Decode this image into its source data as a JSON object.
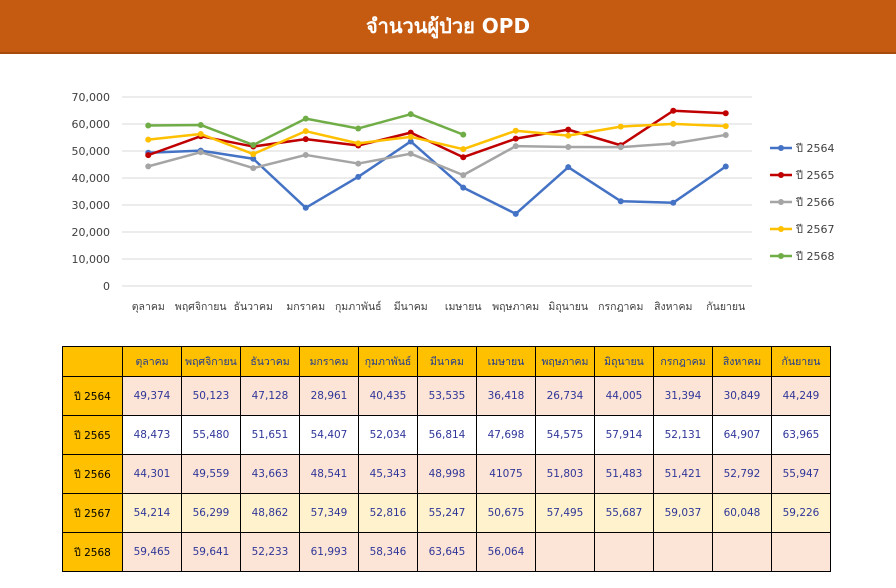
{
  "header": {
    "title": "จำนวนผู้ป่วย OPD"
  },
  "chart_data": {
    "type": "line",
    "title": "",
    "xlabel": "",
    "ylabel": "",
    "ylim": [
      0,
      70000
    ],
    "yticks": [
      0,
      10000,
      20000,
      30000,
      40000,
      50000,
      60000,
      70000
    ],
    "ytick_labels": [
      "0",
      "10,000",
      "20,000",
      "30,000",
      "40,000",
      "50,000",
      "60,000",
      "70,000"
    ],
    "grid": true,
    "legend_position": "right",
    "categories": [
      "ตุลาคม",
      "พฤศจิกายน",
      "ธันวาคม",
      "มกราคม",
      "กุมภาพันธ์",
      "มีนาคม",
      "เมษายน",
      "พฤษภาคม",
      "มิถุนายน",
      "กรกฎาคม",
      "สิงหาคม",
      "กันยายน"
    ],
    "series": [
      {
        "name": "ปี 2564",
        "color": "#4472c4",
        "values": [
          49374,
          50123,
          47128,
          28961,
          40435,
          53535,
          36418,
          26734,
          44005,
          31394,
          30849,
          44249
        ]
      },
      {
        "name": "ปี 2565",
        "color": "#c00000",
        "values": [
          48473,
          55480,
          51651,
          54407,
          52034,
          56814,
          47698,
          54575,
          57914,
          52131,
          64907,
          63965
        ]
      },
      {
        "name": "ปี 2566",
        "color": "#a5a5a5",
        "values": [
          44301,
          49559,
          43663,
          48541,
          45343,
          48998,
          41075,
          51803,
          51483,
          51421,
          52792,
          55947
        ]
      },
      {
        "name": "ปี 2567",
        "color": "#ffc000",
        "values": [
          54214,
          56299,
          48862,
          57349,
          52816,
          55247,
          50675,
          57495,
          55687,
          59037,
          60048,
          59226
        ]
      },
      {
        "name": "ปี 2568",
        "color": "#70ad47",
        "values": [
          59465,
          59641,
          52233,
          61993,
          58346,
          63645,
          56064,
          null,
          null,
          null,
          null,
          null
        ]
      }
    ]
  },
  "table": {
    "corner": "",
    "columns": [
      "ตุลาคม",
      "พฤศจิกายน",
      "ธันวาคม",
      "มกราคม",
      "กุมภาพันธ์",
      "มีนาคม",
      "เมษายน",
      "พฤษภาคม",
      "มิถุนายน",
      "กรกฎาคม",
      "สิงหาคม",
      "กันยายน"
    ],
    "rows": [
      {
        "label": "ปี 2564",
        "cells": [
          "49,374",
          "50,123",
          "47,128",
          "28,961",
          "40,435",
          "53,535",
          "36,418",
          "26,734",
          "44,005",
          "31,394",
          "30,849",
          "44,249"
        ]
      },
      {
        "label": "ปี 2565",
        "cells": [
          "48,473",
          "55,480",
          "51,651",
          "54,407",
          "52,034",
          "56,814",
          "47,698",
          "54,575",
          "57,914",
          "52,131",
          "64,907",
          "63,965"
        ]
      },
      {
        "label": "ปี 2566",
        "cells": [
          "44,301",
          "49,559",
          "43,663",
          "48,541",
          "45,343",
          "48,998",
          "41075",
          "51,803",
          "51,483",
          "51,421",
          "52,792",
          "55,947"
        ]
      },
      {
        "label": "ปี 2567",
        "cells": [
          "54,214",
          "56,299",
          "48,862",
          "57,349",
          "52,816",
          "55,247",
          "50,675",
          "57,495",
          "55,687",
          "59,037",
          "60,048",
          "59,226"
        ]
      },
      {
        "label": "ปี 2568",
        "cells": [
          "59,465",
          "59,641",
          "52,233",
          "61,993",
          "58,346",
          "63,645",
          "56,064",
          "",
          "",
          "",
          "",
          ""
        ]
      }
    ]
  }
}
